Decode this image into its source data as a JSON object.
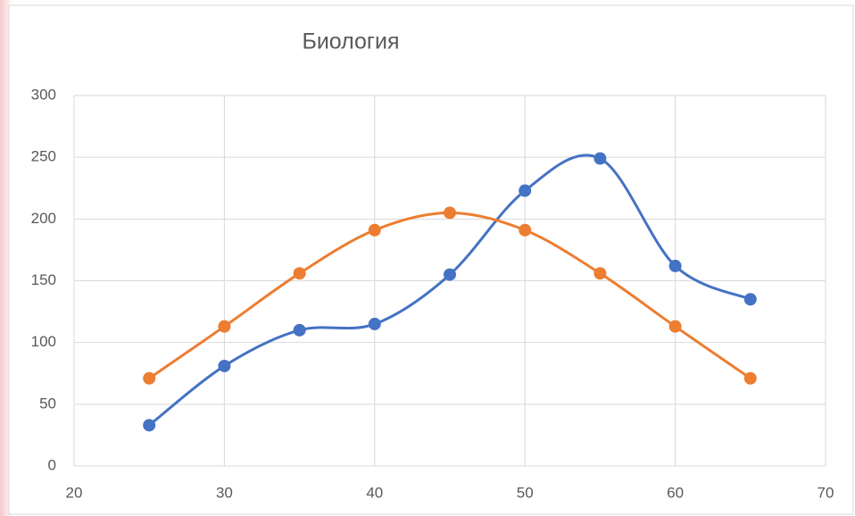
{
  "chart_data": {
    "type": "scatter",
    "title": "Биология",
    "smooth": true,
    "grid": true,
    "xlim": [
      20,
      70
    ],
    "xticks": [
      20,
      30,
      40,
      50,
      60,
      70
    ],
    "ylim": [
      0,
      300
    ],
    "yticks": [
      0,
      50,
      100,
      150,
      200,
      250,
      300
    ],
    "series": [
      {
        "color": "#4472c4",
        "x": [
          25,
          30,
          35,
          40,
          45,
          50,
          55,
          60,
          65
        ],
        "values": [
          33,
          81,
          110,
          115,
          155,
          223,
          249,
          162,
          135
        ]
      },
      {
        "color": "#ed7d31",
        "x": [
          25,
          30,
          35,
          40,
          45,
          50,
          55,
          60,
          65
        ],
        "values": [
          71,
          113,
          156,
          191,
          205,
          191,
          156,
          113,
          71
        ]
      }
    ]
  }
}
